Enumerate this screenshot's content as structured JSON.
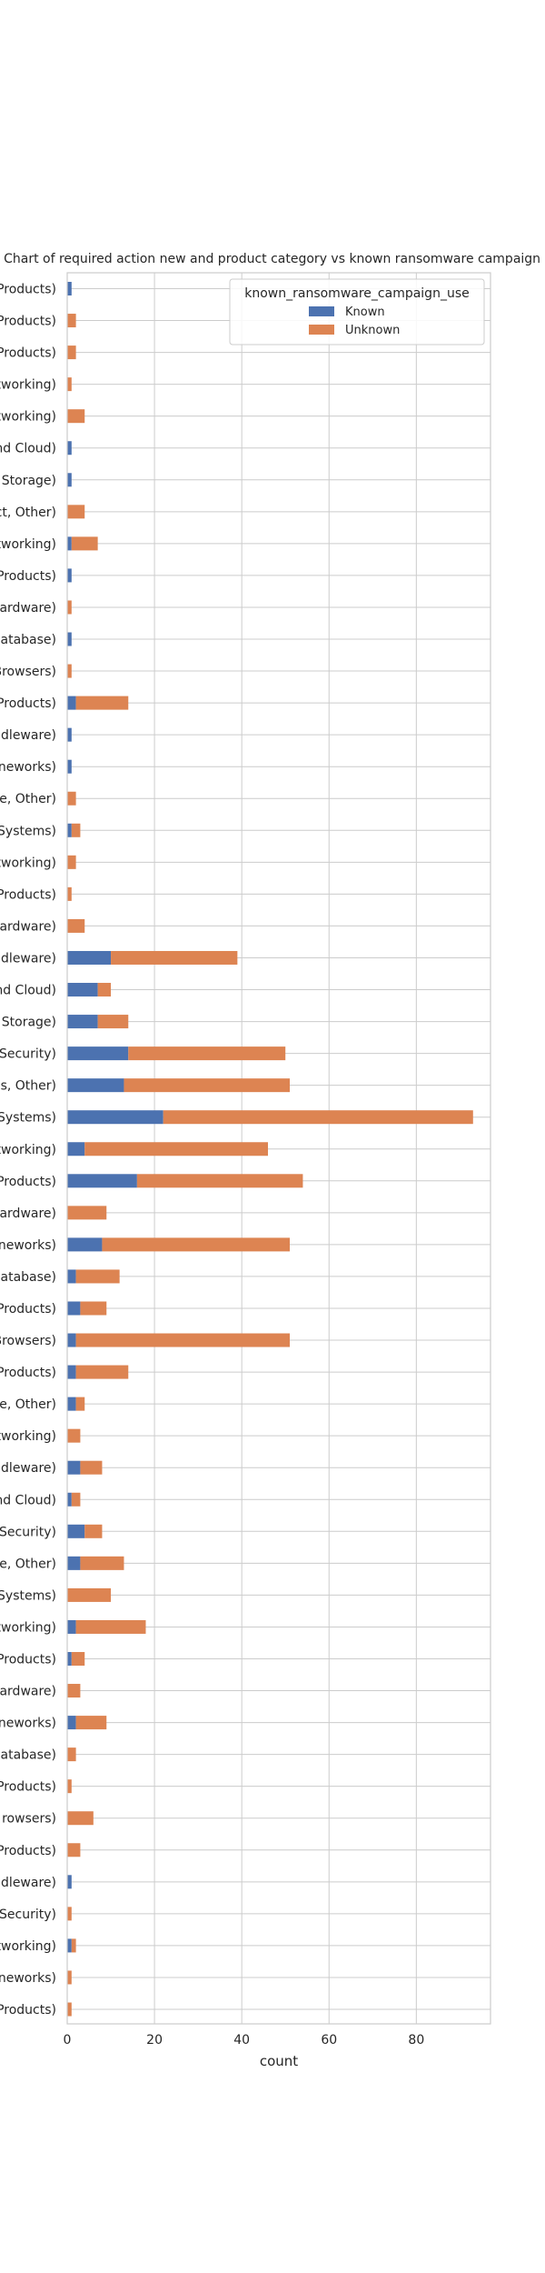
{
  "chart_data": {
    "type": "bar",
    "orientation": "horizontal",
    "stacked": true,
    "title": "Bar Chart of  required action new and product category vs known ransomware campaign use",
    "xlabel": "count",
    "ylabel": "",
    "xlim": [
      0,
      97
    ],
    "xticks": [
      0,
      20,
      40,
      60,
      80
    ],
    "grid": true,
    "legend": {
      "title": "known_ransomware_campaign_use",
      "placement": "top-right",
      "entries": [
        "Known",
        "Unknown"
      ]
    },
    "colors": {
      "Known": "#4c72b0",
      "Unknown": "#dd8452"
    },
    "categories": [
      "Products)",
      "Products)",
      "Products)",
      "tworking)",
      "tworking)",
      "nd Cloud)",
      "Storage)",
      "ct, Other)",
      "tworking)",
      "Products)",
      "ardware)",
      "Database)",
      "Browsers)",
      "Products)",
      "ddleware)",
      "neworks)",
      "e, Other)",
      "Systems)",
      "tworking)",
      "Products)",
      "ardware)",
      "ddleware)",
      "nd Cloud)",
      "Storage)",
      "Security)",
      "es, Other)",
      "Systems)",
      "tworking)",
      "Products)",
      "ardware)",
      "neworks)",
      "Database)",
      "Products)",
      "Browsers)",
      "Products)",
      "e, Other)",
      "tworking)",
      "ddleware)",
      "nd Cloud)",
      "Security)",
      "e, Other)",
      "Systems)",
      "tworking)",
      "Products)",
      "ardware)",
      "neworks)",
      "Database)",
      "Products)",
      "rowsers)",
      "Products)",
      "ddleware)",
      "Security)",
      "tworking)",
      "neworks)",
      "Products)"
    ],
    "series": [
      {
        "name": "Known",
        "values": [
          1,
          0,
          0,
          0,
          0,
          1,
          1,
          0,
          1,
          1,
          0,
          1,
          0,
          2,
          1,
          1,
          0,
          1,
          0,
          0,
          0,
          10,
          7,
          7,
          14,
          13,
          22,
          4,
          16,
          0,
          8,
          2,
          3,
          2,
          2,
          2,
          0,
          3,
          1,
          4,
          3,
          0,
          2,
          1,
          0,
          2,
          0,
          0,
          0,
          0,
          1,
          0,
          1,
          0,
          0
        ]
      },
      {
        "name": "Unknown",
        "values": [
          0,
          2,
          2,
          1,
          4,
          0,
          0,
          4,
          6,
          0,
          1,
          0,
          1,
          12,
          0,
          0,
          2,
          2,
          2,
          1,
          4,
          29,
          3,
          7,
          36,
          38,
          71,
          42,
          38,
          9,
          43,
          10,
          6,
          49,
          12,
          2,
          3,
          5,
          2,
          4,
          10,
          10,
          16,
          3,
          3,
          7,
          2,
          1,
          6,
          3,
          0,
          1,
          1,
          1,
          1
        ]
      }
    ]
  }
}
